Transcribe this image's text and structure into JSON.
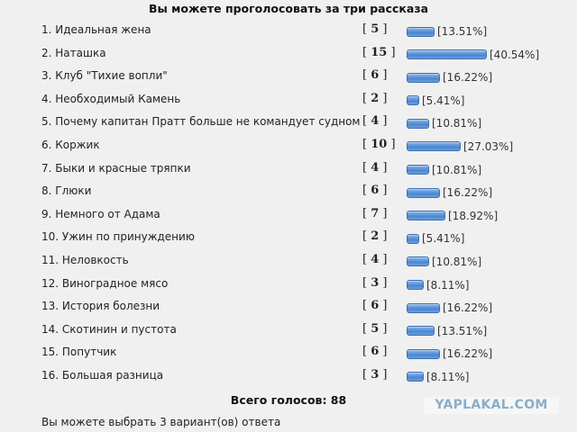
{
  "poll": {
    "title": "Вы можете проголосовать за три рассказа",
    "items": [
      {
        "label": "1. Идеальная жена",
        "votes": "5",
        "percent": "[13.51%]",
        "pct_value": 13.51
      },
      {
        "label": "2. Наташка",
        "votes": "15",
        "percent": "[40.54%]",
        "pct_value": 40.54
      },
      {
        "label": "3. Клуб \"Тихие вопли\"",
        "votes": "6",
        "percent": "[16.22%]",
        "pct_value": 16.22
      },
      {
        "label": "4. Необходимый Камень",
        "votes": "2",
        "percent": "[5.41%]",
        "pct_value": 5.41
      },
      {
        "label": "5. Почему капитан Пратт больше не командует судном",
        "votes": "4",
        "percent": "[10.81%]",
        "pct_value": 10.81
      },
      {
        "label": "6. Коржик",
        "votes": "10",
        "percent": "[27.03%]",
        "pct_value": 27.03
      },
      {
        "label": "7. Быки и красные тряпки",
        "votes": "4",
        "percent": "[10.81%]",
        "pct_value": 10.81
      },
      {
        "label": "8. Глюки",
        "votes": "6",
        "percent": "[16.22%]",
        "pct_value": 16.22
      },
      {
        "label": "9. Немного от Адама",
        "votes": "7",
        "percent": "[18.92%]",
        "pct_value": 18.92
      },
      {
        "label": "10. Ужин по принуждению",
        "votes": "2",
        "percent": "[5.41%]",
        "pct_value": 5.41
      },
      {
        "label": "11. Неловкость",
        "votes": "4",
        "percent": "[10.81%]",
        "pct_value": 10.81
      },
      {
        "label": "12. Виноградное мясо",
        "votes": "3",
        "percent": "[8.11%]",
        "pct_value": 8.11
      },
      {
        "label": "13. История болезни",
        "votes": "6",
        "percent": "[16.22%]",
        "pct_value": 16.22
      },
      {
        "label": "14. Скотинин и пустота",
        "votes": "5",
        "percent": "[13.51%]",
        "pct_value": 13.51
      },
      {
        "label": "15. Попутчик",
        "votes": "6",
        "percent": "[16.22%]",
        "pct_value": 16.22
      },
      {
        "label": "16. Большая разница",
        "votes": "3",
        "percent": "[8.11%]",
        "pct_value": 8.11
      }
    ],
    "total_label": "Всего голосов: 88",
    "hint": "Вы можете выбрать 3 вариант(ов) ответа",
    "bar_color": "#5a93d6",
    "bar_border_color": "#3e6fb0"
  },
  "watermark": {
    "text": "YAPLAKAL.COM",
    "color": "#8aaec8"
  }
}
